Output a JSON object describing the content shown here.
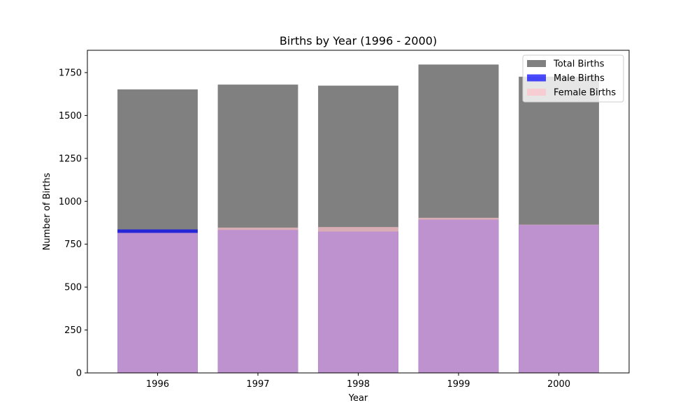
{
  "chart_data": {
    "type": "bar",
    "title": "Births by Year (1996 - 2000)",
    "xlabel": "Year",
    "ylabel": "Number of Births",
    "categories": [
      "1996",
      "1997",
      "1998",
      "1999",
      "2000"
    ],
    "ylim": [
      0,
      1880
    ],
    "yticks": [
      0,
      250,
      500,
      750,
      1000,
      1250,
      1500,
      1750
    ],
    "grid": false,
    "legend_position": "top-right",
    "series": [
      {
        "name": "Total Births",
        "values": [
          1652,
          1680,
          1674,
          1797,
          1726
        ],
        "color": "#808080",
        "opacity": 1.0
      },
      {
        "name": "Male Births",
        "values": [
          836,
          833,
          824,
          893,
          862
        ],
        "color": "#0000ff",
        "opacity": 0.7
      },
      {
        "name": "Female Births",
        "values": [
          816,
          847,
          850,
          904,
          864
        ],
        "color": "#ffc0cb",
        "opacity": 0.7
      }
    ]
  }
}
